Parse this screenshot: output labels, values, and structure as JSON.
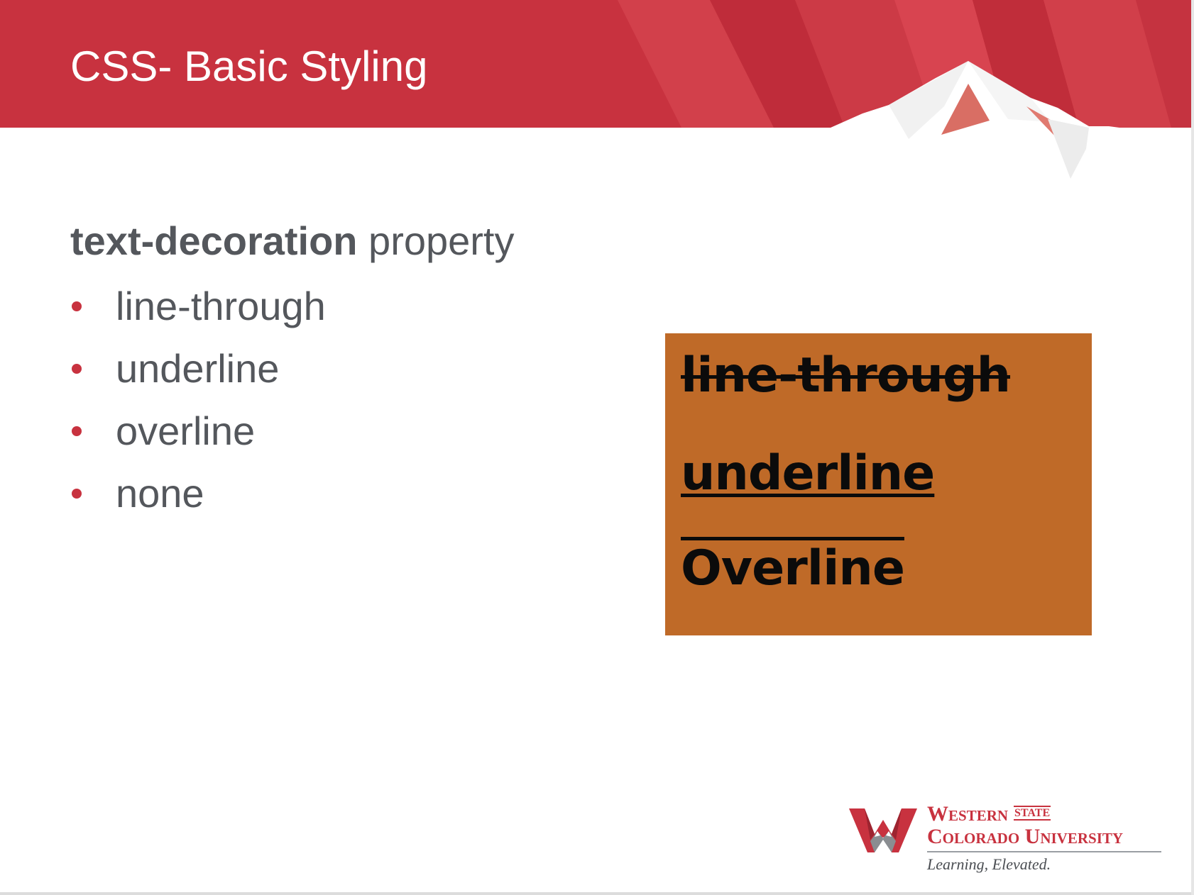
{
  "slide": {
    "title": "CSS- Basic Styling",
    "heading_term": "text-decoration",
    "heading_rest": " property",
    "bullets": [
      "line-through",
      "underline",
      "overline",
      "none"
    ]
  },
  "example_image": {
    "line1": "line-through",
    "line2": "underline",
    "line3": "Overline",
    "background_color": "#bf6a28"
  },
  "logo": {
    "name_line1": "Western",
    "name_state": "STATE",
    "name_line2": "Colorado University",
    "tagline": "Learning, Elevated."
  },
  "colors": {
    "brand_red": "#c8323f",
    "text_gray": "#54575c"
  }
}
